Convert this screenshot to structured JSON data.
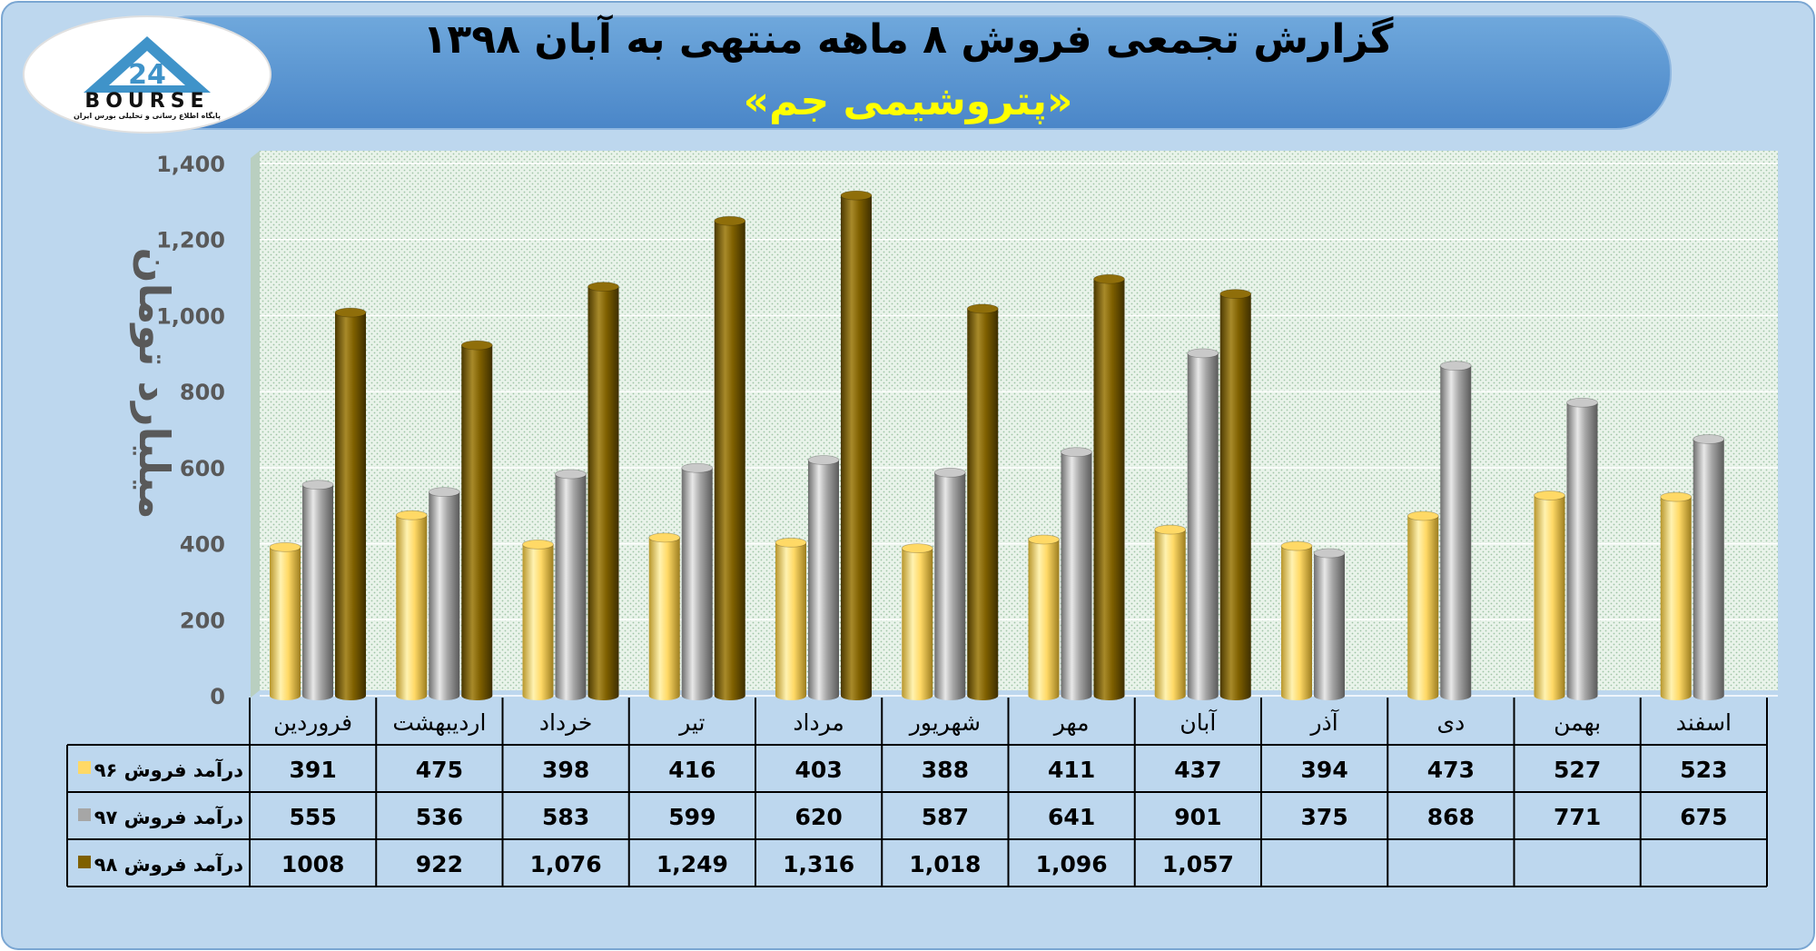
{
  "header": {
    "title": "گزارش تجمعی فروش ۸ ماهه منتهی به آبان ۱۳۹۸",
    "subtitle": "«پتروشیمی جم»"
  },
  "logo": {
    "text": "BOURSE",
    "tagline": "پایگاه اطلاع رسانی و تحلیلی بورس ایران"
  },
  "colors": {
    "background": "#bdd7ee",
    "header_band": "#5b9bd5",
    "subtitle": "#ffff00",
    "series_96": "#ffd966",
    "series_97": "#a6a6a6",
    "series_98": "#7f6000",
    "axis_text": "#595959"
  },
  "chart_data": {
    "type": "bar",
    "ylabel": "میلیارد تومان",
    "ylim": [
      0,
      1400
    ],
    "yticks": [
      "0",
      "200",
      "400",
      "600",
      "800",
      "1,000",
      "1,200",
      "1,400"
    ],
    "categories": [
      "فروردین",
      "اردیبهشت",
      "خرداد",
      "تیر",
      "مرداد",
      "شهریور",
      "مهر",
      "آبان",
      "آذر",
      "دی",
      "بهمن",
      "اسفند"
    ],
    "series": [
      {
        "name": "درآمد فروش ۹۶",
        "values": [
          391,
          475,
          398,
          416,
          403,
          388,
          411,
          437,
          394,
          473,
          527,
          523
        ],
        "labels": [
          "391",
          "475",
          "398",
          "416",
          "403",
          "388",
          "411",
          "437",
          "394",
          "473",
          "527",
          "523"
        ]
      },
      {
        "name": "درآمد فروش ۹۷",
        "values": [
          555,
          536,
          583,
          599,
          620,
          587,
          641,
          901,
          375,
          868,
          771,
          675
        ],
        "labels": [
          "555",
          "536",
          "583",
          "599",
          "620",
          "587",
          "641",
          "901",
          "375",
          "868",
          "771",
          "675"
        ]
      },
      {
        "name": "درآمد فروش ۹۸",
        "values": [
          1008,
          922,
          1076,
          1249,
          1316,
          1018,
          1096,
          1057,
          null,
          null,
          null,
          null
        ],
        "labels": [
          "1008",
          "922",
          "1,076",
          "1,249",
          "1,316",
          "1,018",
          "1,096",
          "1,057",
          "",
          "",
          "",
          ""
        ]
      }
    ],
    "grid": true,
    "legend": "data-table"
  }
}
